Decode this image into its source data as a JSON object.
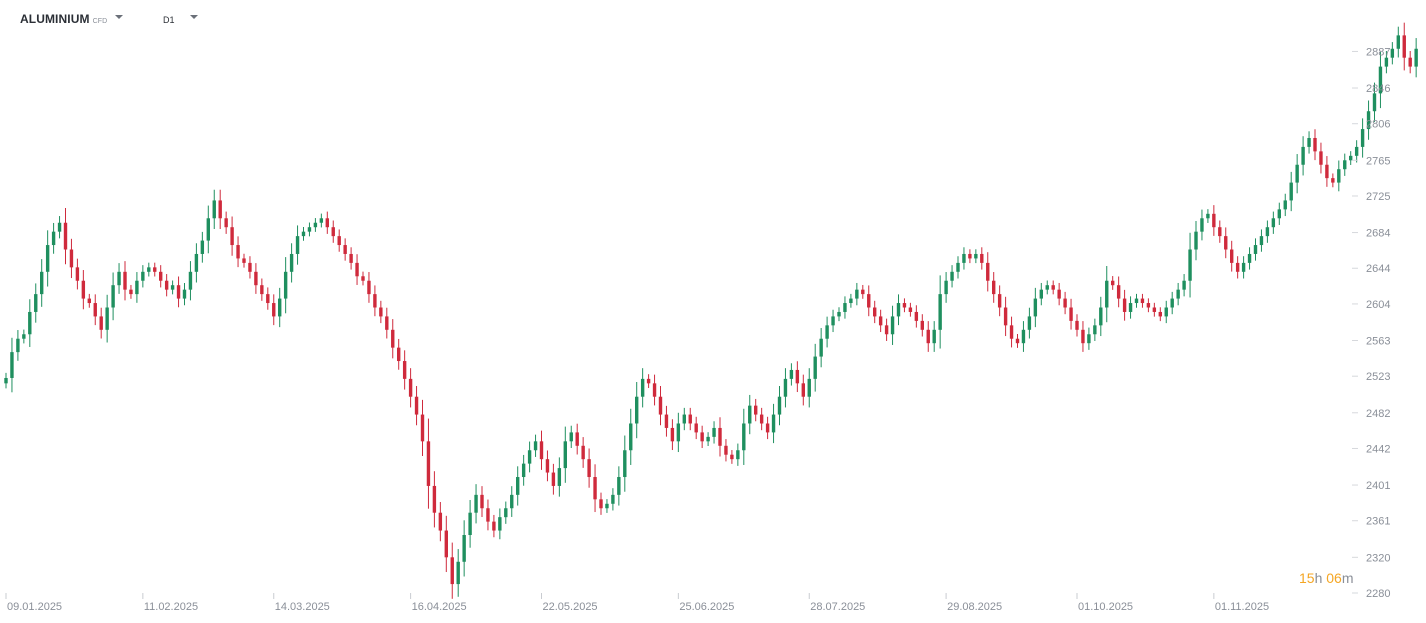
{
  "toolbar": {
    "symbol": "ALUMINIUM",
    "symbol_tag": "CFD",
    "timeframe": "D1",
    "icons": [
      "chevron-down-icon",
      "chevron-down-icon"
    ]
  },
  "countdown": {
    "hours": "15",
    "hours_unit": "h",
    "minutes": "06",
    "minutes_unit": "m"
  },
  "colors": {
    "up": "#1f8f5f",
    "down": "#cf2a3c",
    "axis_text": "#8a8f98",
    "countdown": "#f5a623"
  },
  "chart_data": {
    "type": "candlestick",
    "title": "",
    "ylim": [
      2280,
      2920
    ],
    "y_ticks": [
      2280,
      2320,
      2361,
      2401,
      2442,
      2482,
      2523,
      2563,
      2604,
      2644,
      2684,
      2725,
      2765,
      2806,
      2846,
      2887
    ],
    "x_labels": [
      {
        "index": 0,
        "label": "09.01.2025"
      },
      {
        "index": 23,
        "label": "11.02.2025"
      },
      {
        "index": 45,
        "label": "14.03.2025"
      },
      {
        "index": 68,
        "label": "16.04.2025"
      },
      {
        "index": 90,
        "label": "22.05.2025"
      },
      {
        "index": 113,
        "label": "25.06.2025"
      },
      {
        "index": 135,
        "label": "28.07.2025"
      },
      {
        "index": 158,
        "label": "29.08.2025"
      },
      {
        "index": 180,
        "label": "01.10.2025"
      },
      {
        "index": 203,
        "label": "01.11.2025"
      }
    ],
    "close": [
      2521,
      2550,
      2565,
      2570,
      2595,
      2615,
      2640,
      2670,
      2685,
      2695,
      2665,
      2645,
      2630,
      2610,
      2605,
      2590,
      2575,
      2600,
      2625,
      2640,
      2620,
      2615,
      2630,
      2640,
      2645,
      2640,
      2630,
      2620,
      2625,
      2610,
      2620,
      2640,
      2660,
      2675,
      2700,
      2720,
      2700,
      2690,
      2670,
      2655,
      2650,
      2640,
      2625,
      2615,
      2605,
      2590,
      2610,
      2640,
      2660,
      2680,
      2685,
      2690,
      2695,
      2700,
      2690,
      2680,
      2670,
      2660,
      2650,
      2635,
      2630,
      2615,
      2600,
      2590,
      2575,
      2555,
      2540,
      2520,
      2500,
      2480,
      2450,
      2400,
      2370,
      2350,
      2320,
      2290,
      2315,
      2345,
      2370,
      2390,
      2375,
      2360,
      2350,
      2365,
      2375,
      2390,
      2410,
      2425,
      2440,
      2450,
      2430,
      2415,
      2400,
      2420,
      2450,
      2460,
      2445,
      2430,
      2410,
      2385,
      2375,
      2380,
      2390,
      2410,
      2440,
      2470,
      2500,
      2520,
      2515,
      2500,
      2480,
      2465,
      2450,
      2470,
      2480,
      2470,
      2460,
      2450,
      2455,
      2465,
      2445,
      2435,
      2430,
      2440,
      2470,
      2490,
      2480,
      2470,
      2460,
      2480,
      2500,
      2520,
      2530,
      2515,
      2500,
      2520,
      2545,
      2565,
      2580,
      2590,
      2595,
      2605,
      2610,
      2620,
      2615,
      2600,
      2590,
      2580,
      2570,
      2590,
      2605,
      2600,
      2595,
      2585,
      2575,
      2560,
      2575,
      2615,
      2630,
      2640,
      2650,
      2660,
      2655,
      2660,
      2650,
      2630,
      2615,
      2600,
      2580,
      2565,
      2560,
      2575,
      2590,
      2610,
      2620,
      2625,
      2620,
      2610,
      2600,
      2585,
      2575,
      2560,
      2570,
      2580,
      2600,
      2630,
      2625,
      2610,
      2595,
      2605,
      2610,
      2605,
      2600,
      2595,
      2590,
      2600,
      2610,
      2620,
      2630,
      2665,
      2685,
      2700,
      2705,
      2690,
      2680,
      2665,
      2650,
      2640,
      2650,
      2660,
      2670,
      2680,
      2690,
      2700,
      2710,
      2720,
      2740,
      2760,
      2780,
      2790,
      2775,
      2760,
      2745,
      2740,
      2755,
      2765,
      2770,
      2780,
      2800,
      2820,
      2840,
      2870,
      2880,
      2890,
      2905,
      2880,
      2870,
      2890
    ]
  }
}
